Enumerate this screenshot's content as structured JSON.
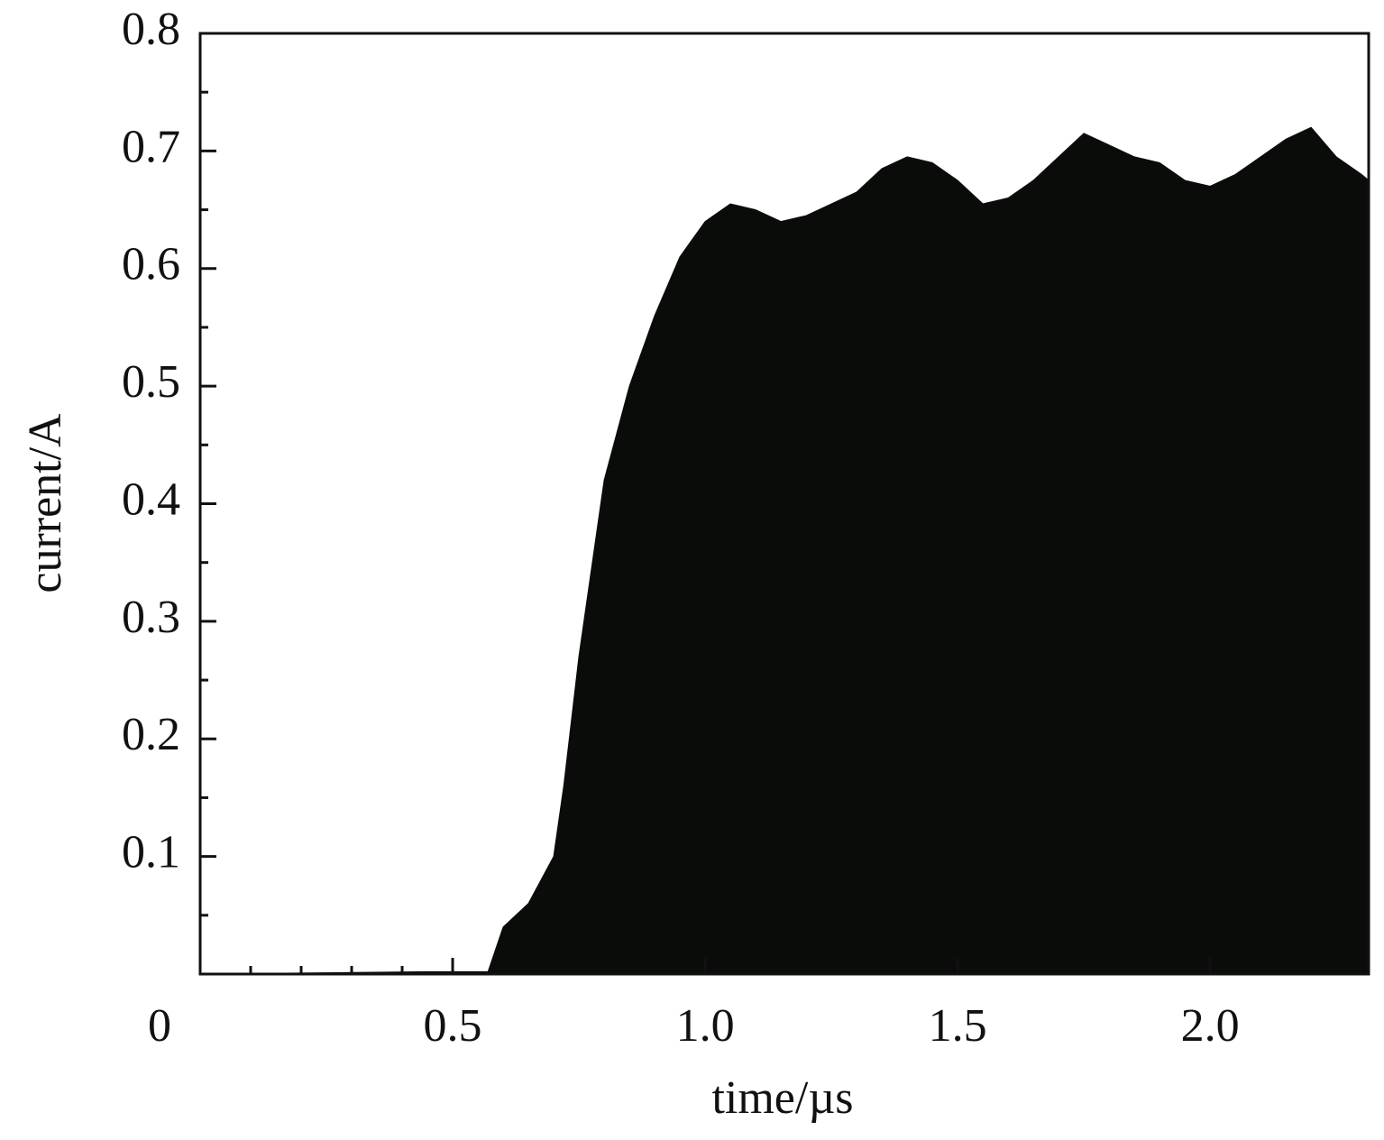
{
  "chart_data": {
    "type": "area",
    "x_label": "time/µs",
    "y_label": "current/A",
    "x": [
      0,
      0.45,
      0.57,
      0.6,
      0.65,
      0.7,
      0.72,
      0.75,
      0.78,
      0.8,
      0.85,
      0.9,
      0.95,
      1.0,
      1.05,
      1.1,
      1.15,
      1.2,
      1.25,
      1.3,
      1.35,
      1.4,
      1.45,
      1.5,
      1.55,
      1.6,
      1.65,
      1.7,
      1.75,
      1.8,
      1.85,
      1.9,
      1.95,
      2.0,
      2.05,
      2.1,
      2.15,
      2.2,
      2.25,
      2.3,
      2.314
    ],
    "values": [
      0,
      0.002,
      0.002,
      0.04,
      0.06,
      0.1,
      0.16,
      0.27,
      0.36,
      0.42,
      0.5,
      0.56,
      0.61,
      0.64,
      0.655,
      0.65,
      0.64,
      0.645,
      0.655,
      0.665,
      0.685,
      0.695,
      0.69,
      0.675,
      0.655,
      0.66,
      0.675,
      0.695,
      0.715,
      0.705,
      0.695,
      0.69,
      0.675,
      0.67,
      0.68,
      0.695,
      0.71,
      0.72,
      0.695,
      0.68,
      0.675
    ],
    "color": "#0a0c0a",
    "xlim": [
      0,
      2.314
    ],
    "ylim": [
      0,
      0.8
    ],
    "xticks": [
      0,
      0.5,
      {
        "value": 1,
        "label": "1.0"
      },
      1.5,
      {
        "value": 2,
        "label": "2.0"
      }
    ],
    "yticks": [
      0.1,
      0.2,
      0.3,
      0.4,
      0.5,
      0.6,
      0.7,
      0.8
    ],
    "xminorticks": [
      0.1,
      0.2,
      0.3,
      0.4
    ],
    "yminorticks": [
      0.05,
      0.15,
      0.25,
      0.35,
      0.45,
      0.55,
      0.65,
      0.75
    ]
  }
}
